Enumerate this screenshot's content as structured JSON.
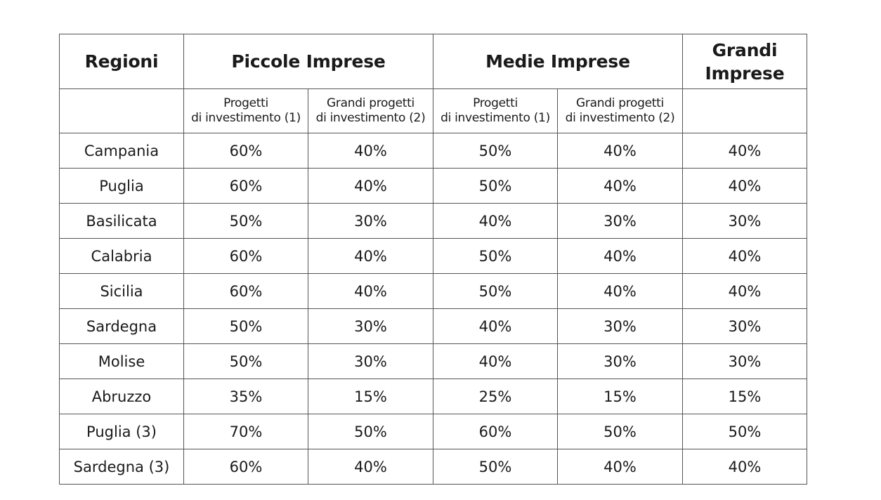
{
  "header": {
    "regions": "Regioni",
    "small": "Piccole Imprese",
    "medium": "Medie Imprese",
    "large_line1": "Grandi",
    "large_line2": "Imprese"
  },
  "subheader": {
    "small_projects": [
      "Progetti",
      "di investimento (1)"
    ],
    "small_large_projects": [
      "Grandi progetti",
      "di investimento (2)"
    ],
    "medium_projects": [
      "Progetti",
      "di investimento (1)"
    ],
    "medium_large_projects": [
      "Grandi progetti",
      "di investimento (2)"
    ]
  },
  "rows": [
    [
      "Campania",
      "60%",
      "40%",
      "50%",
      "40%",
      "40%"
    ],
    [
      "Puglia",
      "60%",
      "40%",
      "50%",
      "40%",
      "40%"
    ],
    [
      "Basilicata",
      "50%",
      "30%",
      "40%",
      "30%",
      "30%"
    ],
    [
      "Calabria",
      "60%",
      "40%",
      "50%",
      "40%",
      "40%"
    ],
    [
      "Sicilia",
      "60%",
      "40%",
      "50%",
      "40%",
      "40%"
    ],
    [
      "Sardegna",
      "50%",
      "30%",
      "40%",
      "30%",
      "30%"
    ],
    [
      "Molise",
      "50%",
      "30%",
      "40%",
      "30%",
      "30%"
    ],
    [
      "Abruzzo",
      "35%",
      "15%",
      "25%",
      "15%",
      "15%"
    ],
    [
      "Puglia (3)",
      "70%",
      "50%",
      "60%",
      "50%",
      "50%"
    ],
    [
      "Sardegna (3)",
      "60%",
      "40%",
      "50%",
      "40%",
      "40%"
    ]
  ]
}
